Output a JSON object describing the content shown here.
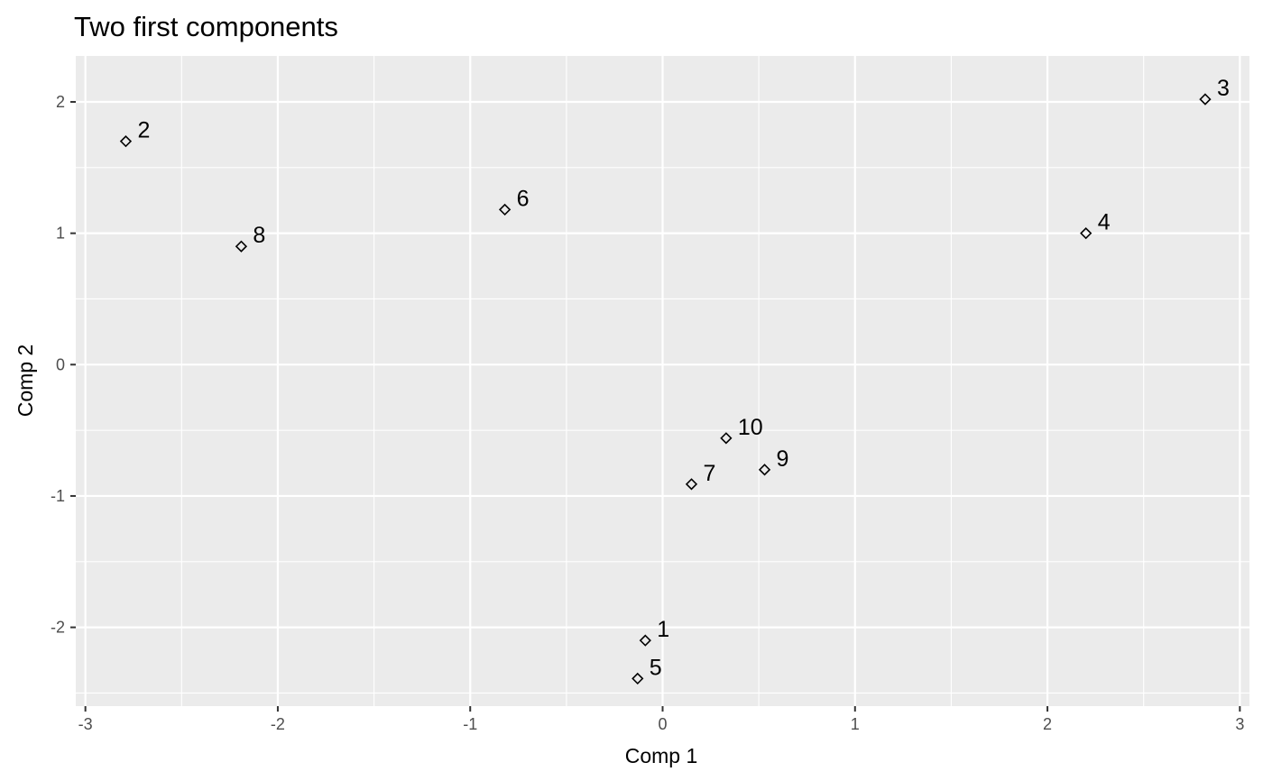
{
  "chart_data": {
    "type": "scatter",
    "title": "Two first components",
    "xlabel": "Comp 1",
    "ylabel": "Comp 2",
    "xlim": [
      -3.05,
      3.05
    ],
    "ylim": [
      -2.6,
      2.35
    ],
    "xticks": [
      -3,
      -2,
      -1,
      0,
      1,
      2,
      3
    ],
    "yticks": [
      -2,
      -1,
      0,
      1,
      2
    ],
    "grid": true,
    "marker": "diamond",
    "colors": {
      "panel": "#ebebeb",
      "grid": "#ffffff",
      "point": "#000000",
      "tick_text": "#4d4d4d"
    },
    "points": [
      {
        "label": "1",
        "x": -0.09,
        "y": -2.1
      },
      {
        "label": "2",
        "x": -2.79,
        "y": 1.7
      },
      {
        "label": "3",
        "x": 2.82,
        "y": 2.02
      },
      {
        "label": "4",
        "x": 2.2,
        "y": 1.0
      },
      {
        "label": "5",
        "x": -0.13,
        "y": -2.39
      },
      {
        "label": "6",
        "x": -0.82,
        "y": 1.18
      },
      {
        "label": "7",
        "x": 0.15,
        "y": -0.91
      },
      {
        "label": "8",
        "x": -2.19,
        "y": 0.9
      },
      {
        "label": "9",
        "x": 0.53,
        "y": -0.8
      },
      {
        "label": "10",
        "x": 0.33,
        "y": -0.56
      }
    ]
  }
}
